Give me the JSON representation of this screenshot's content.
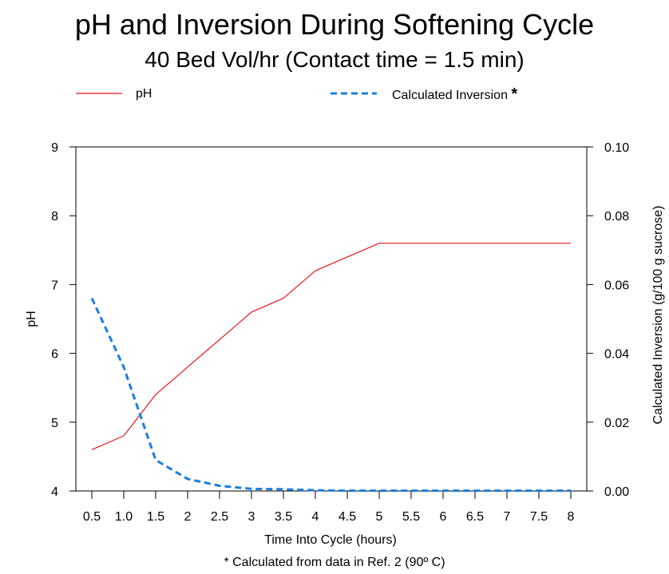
{
  "chart_data": {
    "type": "line",
    "title": "pH and Inversion During Softening Cycle",
    "subtitle": "40 Bed Vol/hr (Contact time = 1.5 min)",
    "xlabel": "Time Into Cycle (hours)",
    "ylabel_left": "pH",
    "ylabel_right": "Calculated Inversion (g/100 g sucrose)",
    "categories": [
      "0.5",
      "1.0",
      "1.5",
      "2",
      "2.5",
      "3",
      "3.5",
      "4",
      "4.5",
      "5",
      "5.5",
      "6",
      "6.5",
      "7",
      "7.5",
      "8"
    ],
    "y_left": {
      "lim": [
        4,
        9
      ],
      "ticks": [
        "4",
        "5",
        "6",
        "7",
        "8",
        "9"
      ]
    },
    "y_right": {
      "lim": [
        0,
        0.1
      ],
      "ticks": [
        "0.00",
        "0.02",
        "0.04",
        "0.06",
        "0.08",
        "0.10"
      ]
    },
    "series": [
      {
        "name": "pH",
        "axis": "left",
        "color": "#e8141b",
        "style": "solid",
        "values": [
          4.6,
          4.8,
          5.4,
          5.8,
          6.2,
          6.6,
          6.8,
          7.2,
          7.4,
          7.6,
          7.6,
          7.6,
          7.6,
          7.6,
          7.6,
          7.6
        ]
      },
      {
        "name": "Calculated Inversion",
        "axis": "right",
        "color": "#1a7ee0",
        "style": "dashed",
        "values": [
          0.056,
          0.036,
          0.009,
          0.0035,
          0.0015,
          0.0006,
          0.0005,
          0.0002,
          0.0001,
          0.0001,
          0.0001,
          0.0001,
          0.0001,
          0.0001,
          0.0001,
          0.0001
        ]
      }
    ],
    "legend": {
      "placement": "top",
      "ph_label": "pH",
      "inversion_label": "Calculated Inversion",
      "inversion_marker": "*"
    },
    "footnote": "* Calculated from data in Ref. 2 (90º C)",
    "grid": false
  }
}
